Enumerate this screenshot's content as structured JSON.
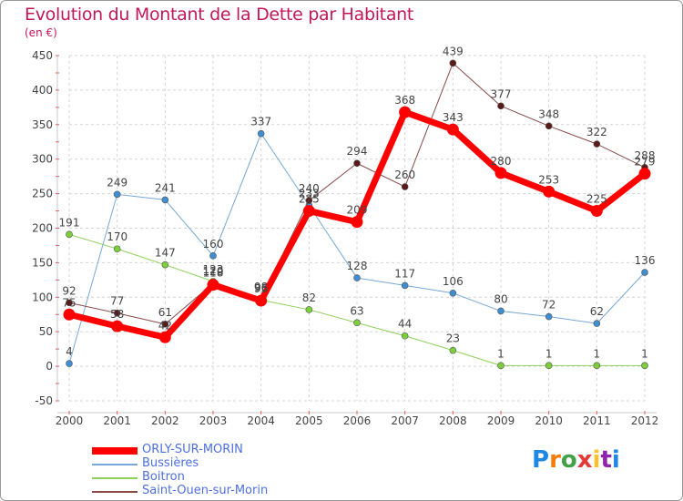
{
  "title": "Evolution du Montant de la Dette par Habitant",
  "subtitle": "(en €)",
  "logo": {
    "text": "Proxiti",
    "colors": [
      "#1e88e5",
      "#f57c00",
      "#43a047",
      "#e53935",
      "#fbc02d",
      "#8e24aa",
      "#1e88e5"
    ]
  },
  "chart_data": {
    "type": "line",
    "x": [
      "2000",
      "2001",
      "2002",
      "2003",
      "2004",
      "2005",
      "2006",
      "2007",
      "2008",
      "2009",
      "2010",
      "2011",
      "2012"
    ],
    "ylim": [
      -50,
      450
    ],
    "yticks": [
      -50,
      0,
      50,
      100,
      150,
      200,
      250,
      300,
      350,
      400,
      450
    ],
    "grid": true,
    "legend_position": "bottom-left",
    "series": [
      {
        "name": "Boitron",
        "color": "#8ed15a",
        "marker": "#7ccf3a",
        "width": 1,
        "values": [
          191,
          170,
          147,
          123,
          96,
          82,
          63,
          44,
          23,
          1,
          1,
          1,
          1
        ],
        "labels": [
          "191",
          "170",
          "147",
          "123",
          "96",
          "82",
          "63",
          "44",
          "23",
          "1",
          "1",
          "1",
          "1"
        ]
      },
      {
        "name": "Bussières",
        "color": "#76a8d6",
        "marker": "#3e8ed0",
        "width": 1,
        "values": [
          4,
          249,
          241,
          160,
          337,
          233,
          128,
          117,
          106,
          80,
          72,
          62,
          136
        ],
        "labels": [
          "4",
          "249",
          "241",
          "160",
          "337",
          "233",
          "128",
          "117",
          "106",
          "80",
          "72",
          "62",
          "136"
        ]
      },
      {
        "name": "Saint-Ouen-sur-Morin",
        "color": "#8a4a4a",
        "marker": "#5a1a1a",
        "width": 1,
        "values": [
          92,
          77,
          61,
          120,
          98,
          240,
          294,
          260,
          439,
          377,
          348,
          322,
          288
        ],
        "labels": [
          "92",
          "77",
          "61",
          "120",
          "98",
          "240",
          "294",
          "260",
          "439",
          "377",
          "348",
          "322",
          "288"
        ]
      },
      {
        "name": "ORLY-SUR-MORIN",
        "color": "#ff0000",
        "marker": "#ff0000",
        "width": 7,
        "values": [
          75,
          58,
          42,
          118,
          95,
          225,
          209,
          368,
          343,
          280,
          253,
          225,
          279
        ],
        "labels": [
          "75",
          "58",
          "42",
          "118",
          "95",
          "225",
          "209",
          "368",
          "343",
          "280",
          "253",
          "225",
          "279"
        ]
      }
    ],
    "legend": [
      "ORLY-SUR-MORIN",
      "Bussières",
      "Boitron",
      "Saint-Ouen-sur-Morin"
    ]
  }
}
